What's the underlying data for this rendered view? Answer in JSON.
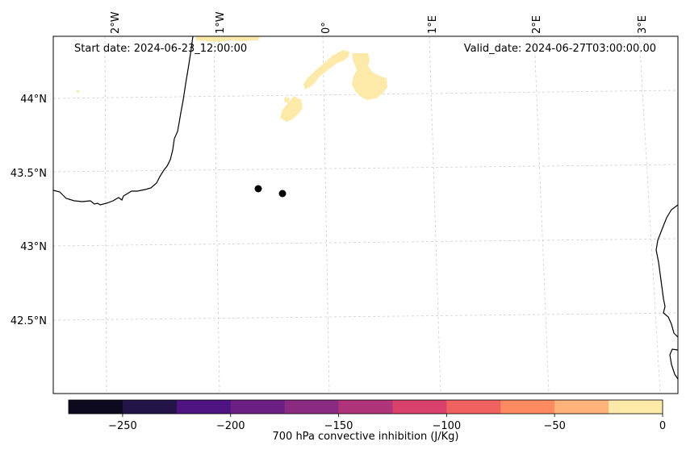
{
  "map": {
    "start_date": "Start date: 2024-06-23_12:00:00",
    "valid_date": "Valid_date: 2024-06-27T03:00:00.00",
    "lon_labels": [
      "2°W",
      "1°W",
      "0°",
      "1°E",
      "2°E",
      "3°E"
    ],
    "lat_labels": [
      "44°N",
      "43.5°N",
      "43°N",
      "42.5°N"
    ],
    "markers": [
      {
        "name": "point-1",
        "lon": -0.62,
        "lat": 43.39
      },
      {
        "name": "point-2",
        "lon": -0.4,
        "lat": 43.36
      }
    ],
    "field_color": "#fde9a8",
    "coast_color": "#000000"
  },
  "colorbar": {
    "label": "700 hPa convective inhibition (J/Kg)",
    "ticks": [
      "−250",
      "−200",
      "−150",
      "−100",
      "−50",
      "0"
    ],
    "range": [
      -275,
      0
    ],
    "bins": [
      {
        "from": -275,
        "to": -250,
        "color": "#0d0a20"
      },
      {
        "from": -250,
        "to": -225,
        "color": "#221446"
      },
      {
        "from": -225,
        "to": -200,
        "color": "#4d1380"
      },
      {
        "from": -200,
        "to": -175,
        "color": "#6b1f82"
      },
      {
        "from": -175,
        "to": -150,
        "color": "#8a2a80"
      },
      {
        "from": -150,
        "to": -125,
        "color": "#b0347a"
      },
      {
        "from": -125,
        "to": -100,
        "color": "#d7416c"
      },
      {
        "from": -100,
        "to": -75,
        "color": "#f06260"
      },
      {
        "from": -75,
        "to": -50,
        "color": "#fd8a60"
      },
      {
        "from": -50,
        "to": -25,
        "color": "#feb37b"
      },
      {
        "from": -25,
        "to": 0,
        "color": "#fde9a8"
      }
    ]
  }
}
